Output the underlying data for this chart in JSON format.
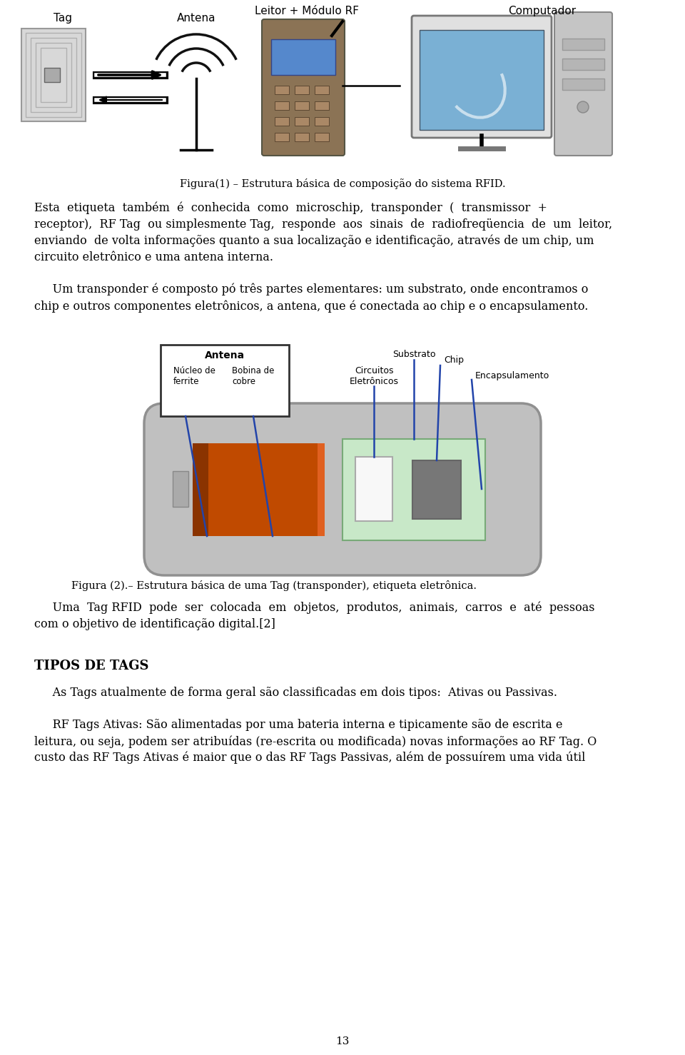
{
  "page_bg": "#ffffff",
  "text_color": "#000000",
  "fig_width": 9.6,
  "fig_height": 14.78,
  "fig1_caption": "Figura(1) – Estrutura básica de composição do sistema RFID.",
  "para1_lines": [
    "Esta  etiqueta  também  é  conhecida  como  microschip,  transponder  (  transmissor  +",
    "receptor),  RF Tag  ou simplesmente Tag,  responde  aos  sinais  de  radiofreqüencia  de  um  leitor,",
    "enviando  de volta informações quanto a sua localização e identificação, através de um chip, um",
    "circuito eletrônico e uma antena interna."
  ],
  "para2_lines": [
    "     Um transponder é composto pó três partes elementares: um substrato, onde encontramos o",
    "chip e outros componentes eletrônicos, a antena, que é conectada ao chip e o encapsulamento."
  ],
  "fig2_caption": "Figura (2).– Estrutura básica de uma Tag (transponder), etiqueta eletrônica.",
  "para3_lines": [
    "     Uma  Tag RFID  pode  ser  colocada  em  objetos,  produtos,  animais,  carros  e  até  pessoas",
    "com o objetivo de identificação digital.[2]"
  ],
  "section_title": "TIPOS DE TAGS",
  "para4_lines": [
    "     As Tags atualmente de forma geral são classificadas em dois tipos:  Ativas ou Passivas."
  ],
  "para5_lines": [
    "     RF Tags Ativas: São alimentadas por uma bateria interna e tipicamente são de escrita e",
    "leitura, ou seja, podem ser atribuídas (re-escrita ou modificada) novas informações ao RF Tag. O",
    "custo das RF Tags Ativas é maior que o das RF Tags Passivas, além de possuírem uma vida útil"
  ],
  "page_number": "13",
  "font_size_body": 11.5,
  "font_size_caption": 10.5,
  "font_size_section": 13,
  "fig1_label_tag": "Tag",
  "fig1_label_antena": "Antena",
  "fig1_label_leitor": "Leitor + Módulo RF",
  "fig1_label_computador": "Computador",
  "fig2_label_antena": "Antena",
  "fig2_label_nucleo": "Núcleo de\nferrite",
  "fig2_label_bobina": "Bobina de\ncobre",
  "fig2_label_substrato": "Substrato",
  "fig2_label_circuitos": "Circuitos\nEletrônicos",
  "fig2_label_chip": "Chip",
  "fig2_label_encapsulamento": "Encapsulamento"
}
